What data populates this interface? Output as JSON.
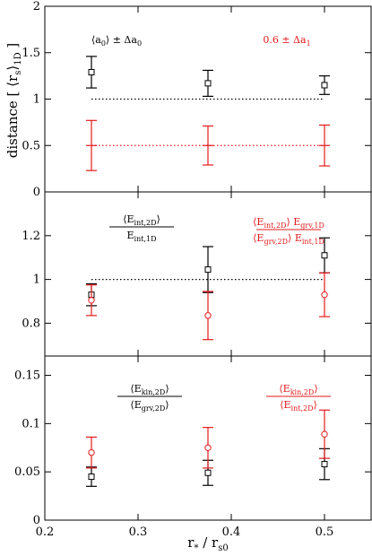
{
  "colors": {
    "black_series": "#000000",
    "red_series": "#e41a1c",
    "frame": "#000000"
  },
  "chart_data": [
    {
      "type": "scatter",
      "panel": "top",
      "xlim": [
        0.2,
        0.55
      ],
      "ylim": [
        0,
        2
      ],
      "ylabel": "distance [ ⟨r_s⟩_1D ]",
      "yticks": [
        "0",
        "0.5",
        "1",
        "1.5",
        "2"
      ],
      "annotations": {
        "black": [
          "⟨a",
          "0",
          "⟩ ± Δa",
          "0"
        ],
        "red": [
          "0.6 ± Δa",
          "1"
        ]
      },
      "series": [
        {
          "color": "black",
          "marker": "square",
          "x": [
            0.25,
            0.375,
            0.5
          ],
          "y": [
            1.29,
            1.17,
            1.15
          ],
          "yerr": [
            0.17,
            0.14,
            0.1
          ]
        },
        {
          "color": "red",
          "marker": "none",
          "x": [
            0.25,
            0.375,
            0.5
          ],
          "y": [
            0.5,
            0.5,
            0.5
          ],
          "yerr": [
            0.27,
            0.21,
            0.22
          ]
        }
      ],
      "reference_lines": [
        {
          "color": "black",
          "style": "dotted",
          "y": 1.0,
          "x": [
            0.25,
            0.5
          ]
        },
        {
          "color": "red",
          "style": "dotted",
          "y": 0.5,
          "x": [
            0.25,
            0.5
          ]
        }
      ]
    },
    {
      "type": "scatter",
      "panel": "middle",
      "xlim": [
        0.2,
        0.55
      ],
      "ylim": [
        0.65,
        1.4
      ],
      "yticks": [
        "0.8",
        "1",
        "1.2"
      ],
      "annotations": {
        "black": {
          "num": [
            "⟨E",
            "int,2D",
            "⟩"
          ],
          "den": [
            "E",
            "int,1D"
          ]
        },
        "red": {
          "num": [
            "⟨E",
            "int,2D",
            "⟩ E",
            "grv,1D"
          ],
          "den": [
            "⟨E",
            "grv,2D",
            "⟩ E",
            "int,1D"
          ]
        }
      },
      "series": [
        {
          "color": "black",
          "marker": "square",
          "x": [
            0.25,
            0.375,
            0.5
          ],
          "y": [
            0.93,
            1.045,
            1.11
          ],
          "yerr": [
            0.05,
            0.105,
            0.08
          ]
        },
        {
          "color": "red",
          "marker": "circle",
          "x": [
            0.25,
            0.375,
            0.5
          ],
          "y": [
            0.905,
            0.835,
            0.93
          ],
          "yerr": [
            0.07,
            0.11,
            0.1
          ]
        }
      ],
      "reference_lines": [
        {
          "color": "black",
          "style": "dotted",
          "y": 1.0,
          "x": [
            0.25,
            0.5
          ]
        }
      ]
    },
    {
      "type": "scatter",
      "panel": "bottom",
      "xlim": [
        0.2,
        0.55
      ],
      "ylim": [
        0,
        0.17
      ],
      "xlabel": "r* / rs0",
      "xticks": [
        "0.2",
        "0.3",
        "0.4",
        "0.5"
      ],
      "yticks": [
        "0",
        "0.05",
        "0.1",
        "0.15"
      ],
      "annotations": {
        "black": {
          "num": [
            "⟨E",
            "kin,2D",
            "⟩"
          ],
          "den": [
            "⟨E",
            "grv,2D",
            "⟩"
          ]
        },
        "red": {
          "num": [
            "⟨E",
            "kin,2D",
            "⟩"
          ],
          "den": [
            "⟨E",
            "int,2D",
            "⟩"
          ]
        }
      },
      "series": [
        {
          "color": "black",
          "marker": "square",
          "x": [
            0.25,
            0.375,
            0.5
          ],
          "y": [
            0.045,
            0.049,
            0.058
          ],
          "yerr": [
            0.01,
            0.013,
            0.016
          ]
        },
        {
          "color": "red",
          "marker": "circle",
          "x": [
            0.25,
            0.375,
            0.5
          ],
          "y": [
            0.07,
            0.075,
            0.089
          ],
          "yerr": [
            0.016,
            0.021,
            0.025
          ]
        }
      ]
    }
  ]
}
